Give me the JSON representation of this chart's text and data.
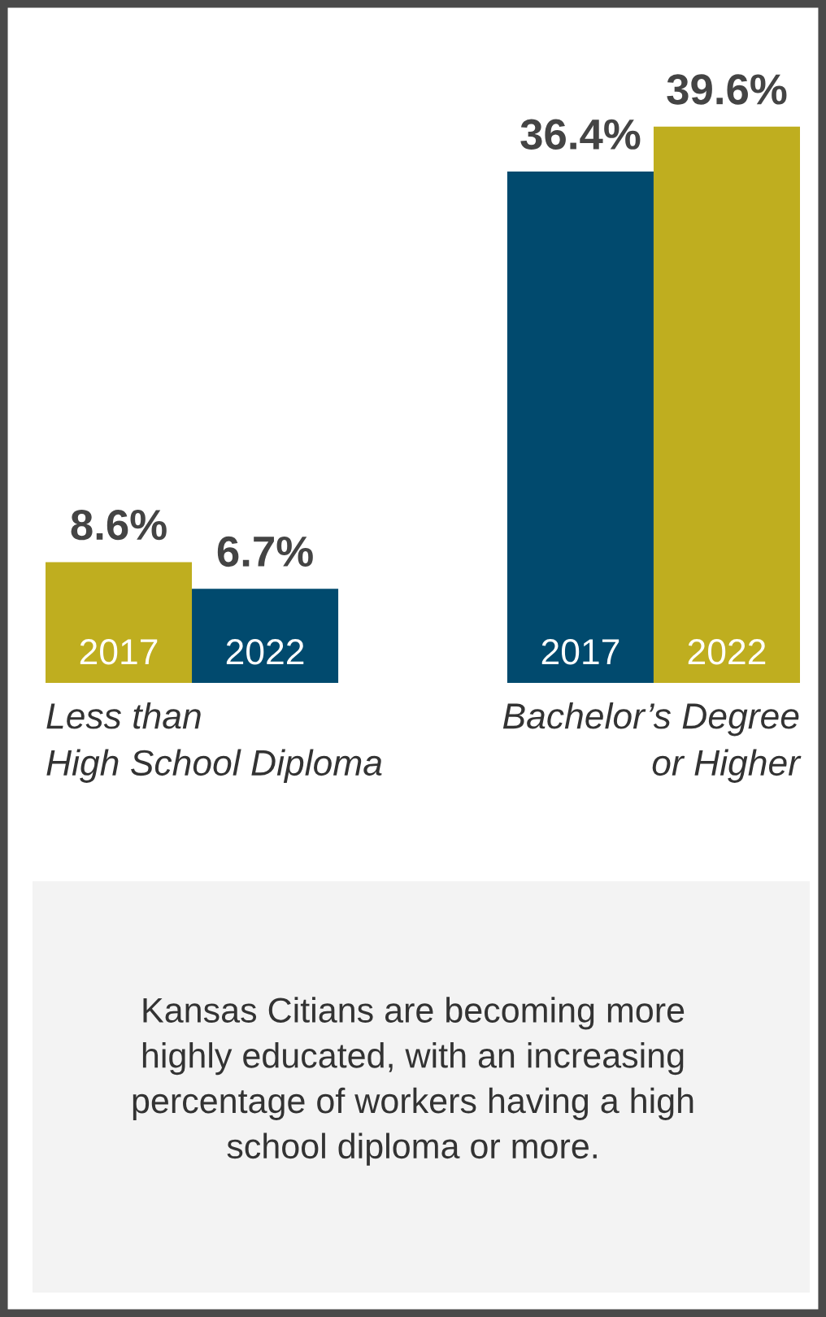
{
  "chart_data": {
    "type": "bar",
    "categories": [
      "Less than\nHigh School Diploma",
      "Bachelor’s Degree\nor Higher"
    ],
    "series": [
      {
        "name": "2017",
        "values": [
          8.6,
          36.4
        ],
        "colors": [
          "#bfae1f",
          "#014a6e"
        ],
        "value_labels": [
          "8.6%",
          "36.4%"
        ]
      },
      {
        "name": "2022",
        "values": [
          6.7,
          39.6
        ],
        "colors": [
          "#014a6e",
          "#bfae1f"
        ],
        "value_labels": [
          "6.7%",
          "39.6%"
        ]
      }
    ],
    "annotations": [
      "Kansas Citians are becoming more\nhighly educated, with an increasing\npercentage of workers having a high\nschool diploma or more."
    ]
  }
}
